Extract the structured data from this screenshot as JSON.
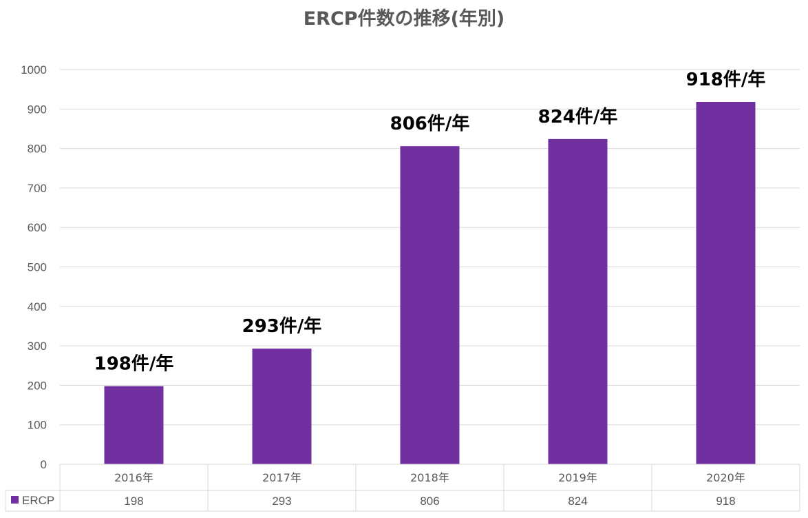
{
  "chart_data": {
    "type": "bar",
    "title": "ERCP件数の推移(年別)",
    "categories": [
      "2016年",
      "2017年",
      "2018年",
      "2019年",
      "2020年"
    ],
    "series": [
      {
        "name": "ERCP",
        "values": [
          198,
          293,
          806,
          824,
          918
        ],
        "color": "#7030A0",
        "data_labels": [
          "198件/年",
          "293件/年",
          "806件/年",
          "824件/年",
          "918件/年"
        ]
      }
    ],
    "ylim": [
      0,
      1000
    ],
    "yticks": [
      "0",
      "100",
      "200",
      "300",
      "400",
      "500",
      "600",
      "700",
      "800",
      "900",
      "1000"
    ],
    "grid": true,
    "legend": "data-table",
    "table_values": [
      "198",
      "293",
      "806",
      "824",
      "918"
    ]
  }
}
